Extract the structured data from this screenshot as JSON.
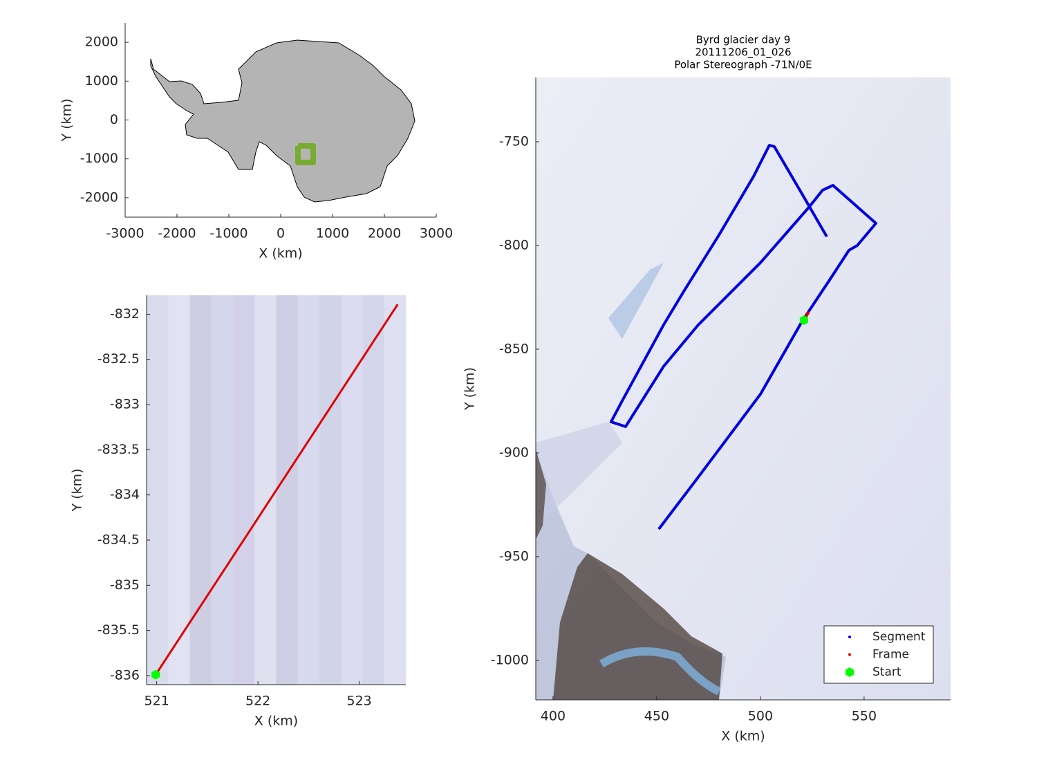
{
  "chart_data": [
    {
      "type": "line",
      "xlabel": "X (km)",
      "ylabel": "Y (km)",
      "xlim": [
        -3000,
        3000
      ],
      "ylim": [
        -2500,
        2500
      ],
      "xticks": [
        -3000,
        -2000,
        -1000,
        0,
        1000,
        2000,
        3000
      ],
      "yticks": [
        -2000,
        -1000,
        0,
        1000,
        2000
      ],
      "series": [
        {
          "color": "#77ac30",
          "style": "line",
          "x": [
            333,
            627,
            627,
            333,
            333
          ],
          "y": [
            -667,
            -667,
            -1093,
            -1093,
            -667
          ]
        }
      ]
    },
    {
      "type": "line",
      "xlabel": "X (km)",
      "ylabel": "Y (km)",
      "xlim": [
        520.9,
        523.46
      ],
      "ylim": [
        -836.1,
        -831.79
      ],
      "xticks": [
        521,
        522,
        523
      ],
      "yticks": [
        -836,
        -835.5,
        -835,
        -834.5,
        -834,
        -833.5,
        -833,
        -832.5,
        -832
      ],
      "series": [
        {
          "color": "#e00000",
          "style": "line",
          "x": [
            520.99,
            523.38
          ],
          "y": [
            -835.99,
            -831.89
          ]
        },
        {
          "color": "#00ff00",
          "style": "hexagon",
          "x": [
            520.99
          ],
          "y": [
            -835.99
          ]
        }
      ]
    },
    {
      "type": "line",
      "title": [
        "Byrd glacier day 9",
        "20111206_01_026",
        "Polar Stereograph -71N/0E"
      ],
      "xlabel": "X (km)",
      "ylabel": "Y (km)",
      "xlim": [
        391.7,
        591.7
      ],
      "ylim": [
        -1019,
        -719
      ],
      "xticks": [
        400,
        450,
        500,
        550
      ],
      "yticks": [
        -1000,
        -950,
        -900,
        -850,
        -800,
        -750
      ],
      "legend": "lower right",
      "series": [
        {
          "name": "Segment",
          "color": "#0000e0",
          "style": "line",
          "x": [
            451.0,
            470.0,
            500.0,
            520.0,
            533.3,
            542.7,
            546.7,
            555.7,
            535.0,
            530.0,
            523.3,
            500.0,
            470.0,
            453.3,
            435.0,
            428.0,
            433.3,
            453.3,
            463.3,
            480.0,
            496.7,
            504.3,
            506.7,
            520.0,
            532.0
          ],
          "y": [
            -936.7,
            -911.7,
            -871.7,
            -836.7,
            -816.7,
            -802.3,
            -800.0,
            -789.3,
            -771.0,
            -773.3,
            -781.7,
            -808.3,
            -838.3,
            -858.3,
            -887.3,
            -885.0,
            -875.0,
            -838.3,
            -821.7,
            -795.0,
            -766.7,
            -751.7,
            -752.3,
            -775.0,
            -795.7
          ]
        },
        {
          "name": "Frame",
          "color": "#e00000",
          "style": "line",
          "x": [
            520.99,
            523.38
          ],
          "y": [
            -835.99,
            -831.89
          ]
        },
        {
          "name": "Start",
          "color": "#00ff00",
          "style": "hexagon",
          "x": [
            520.99
          ],
          "y": [
            -835.99
          ]
        }
      ]
    }
  ]
}
